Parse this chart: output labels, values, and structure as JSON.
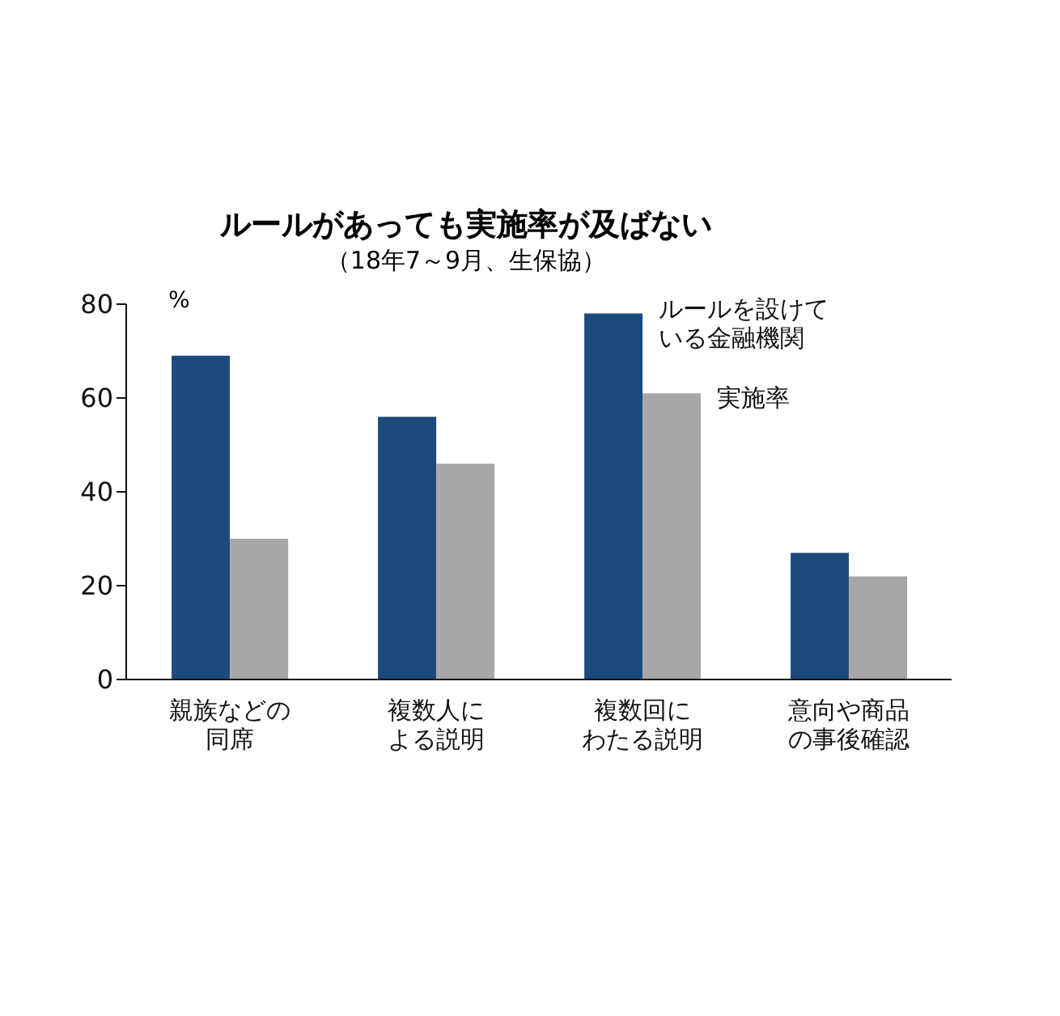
{
  "chart_data": {
    "type": "bar",
    "title": "ルールがあっても実施率が及ばない",
    "subtitle": "（18年7～9月、生保協）",
    "ylabel": "%",
    "categories": [
      "親族などの同席",
      "複数人による説明",
      "複数回にわたる説明",
      "意向や商品の事後確認"
    ],
    "series": [
      {
        "name": "ルールを設けている金融機関",
        "color": "#1d4a7c",
        "values": [
          69,
          56,
          78,
          27
        ]
      },
      {
        "name": "実施率",
        "color": "#a7a7a7",
        "values": [
          30,
          46,
          61,
          22
        ]
      }
    ],
    "ylim": [
      0,
      80
    ],
    "yticks": [
      0,
      20,
      40,
      60,
      80
    ],
    "grid": false
  }
}
